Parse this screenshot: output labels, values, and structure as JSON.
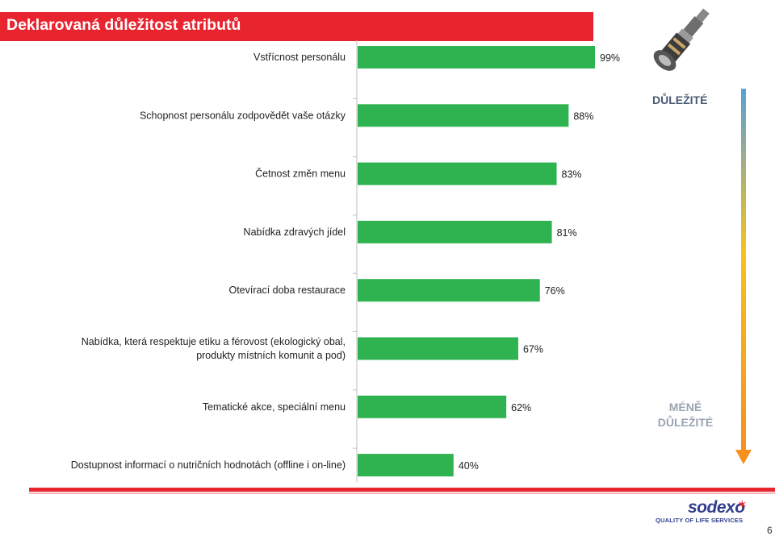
{
  "header": {
    "title": "Deklarovaná důležitost atributů"
  },
  "legend": {
    "important": "DŮLEŽITÉ",
    "less_important": "MÉNĚ DŮLEŽITÉ"
  },
  "brand": {
    "name": "sodexo",
    "tagline": "QUALITY OF LIFE SERVICES"
  },
  "footer": {
    "page_number": "6"
  },
  "colors": {
    "bar": "#2fb350",
    "title_bg": "#e8242f",
    "arrow": "#f7a51e",
    "rule": "#e8242f"
  },
  "chart_data": {
    "type": "bar",
    "orientation": "horizontal",
    "categories": [
      [
        "Vstřícnost personálu"
      ],
      [
        "Schopnost personálu zodpovědět vaše otázky"
      ],
      [
        "Četnost změn menu"
      ],
      [
        "Nabídka zdravých jídel"
      ],
      [
        "Otevírací doba restaurace"
      ],
      [
        "Nabídka, která respektuje etiku a férovost (ekologický obal,",
        "produkty místních komunit a pod)"
      ],
      [
        "Tematické akce, speciální menu"
      ],
      [
        "Dostupnost informací o nutričních hodnotách (offline i on-line)"
      ]
    ],
    "values": [
      99,
      88,
      83,
      81,
      76,
      67,
      62,
      40
    ],
    "value_labels": [
      "99%",
      "88%",
      "83%",
      "81%",
      "76%",
      "67%",
      "62%",
      "40%"
    ],
    "xlim": [
      0,
      100
    ],
    "grid": false
  }
}
